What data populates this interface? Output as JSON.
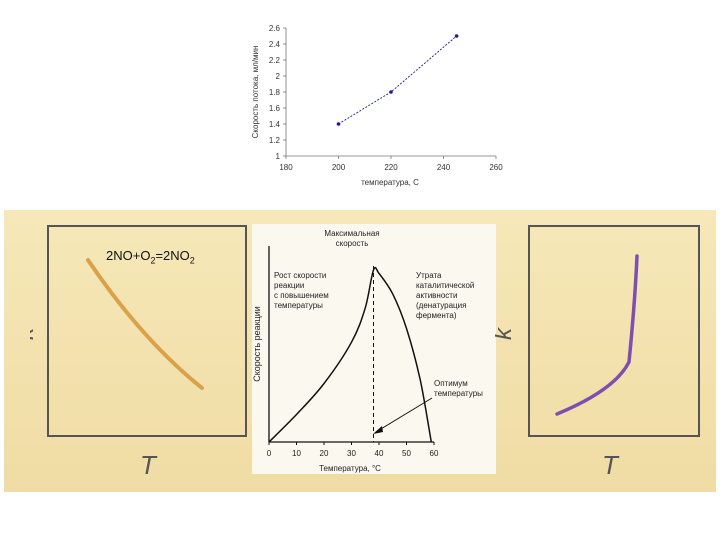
{
  "chart_data": [
    {
      "type": "line",
      "title": "",
      "xlabel": "температура, С",
      "ylabel": "Скорость потока, мл/мин",
      "x_ticks": [
        "180",
        "200",
        "220",
        "240",
        "260"
      ],
      "y_ticks": [
        "1",
        "1.2",
        "1.4",
        "1.6",
        "1.8",
        "2",
        "2.2",
        "2.4",
        "2.6"
      ],
      "xlim": [
        180,
        260
      ],
      "ylim": [
        1,
        2.6
      ],
      "x": [
        200,
        220,
        245
      ],
      "values": [
        1.4,
        1.8,
        2.5
      ],
      "line_color": "#1b1b9a"
    },
    {
      "type": "line",
      "annotation": "2NO+O2=2NO2",
      "formula_parts": [
        "2NO+O",
        "2",
        "=2NO",
        "2"
      ],
      "xlabel": "T",
      "ylabel": "k",
      "trend": "decreasing",
      "line_color": "#d9a24a"
    },
    {
      "type": "line",
      "xlabel": "Температура, °С",
      "ylabel": "Скорость реакции",
      "x_ticks": [
        "0",
        "10",
        "20",
        "30",
        "40",
        "50",
        "60"
      ],
      "xlim": [
        0,
        60
      ],
      "x": [
        0,
        10,
        20,
        30,
        35,
        38,
        40,
        45,
        50,
        55,
        59
      ],
      "values": [
        0.0,
        0.16,
        0.34,
        0.58,
        0.78,
        1.0,
        0.98,
        0.86,
        0.66,
        0.36,
        0.0
      ],
      "annotations": {
        "peak_line1": "Максимальная",
        "peak_line2": "скорость",
        "left": [
          "Рост скорости",
          "реакции",
          "с повышением",
          "температуры"
        ],
        "right": [
          "Утрата",
          "каталитической",
          "активности",
          "(денатурация",
          "фермента)"
        ],
        "optimum": [
          "Оптимум",
          "температуры"
        ]
      },
      "optimum_x": 38,
      "line_color": "#111111"
    },
    {
      "type": "line",
      "xlabel": "T",
      "ylabel": "k",
      "trend": "increasing",
      "line_color": "#7e4fb0"
    }
  ]
}
